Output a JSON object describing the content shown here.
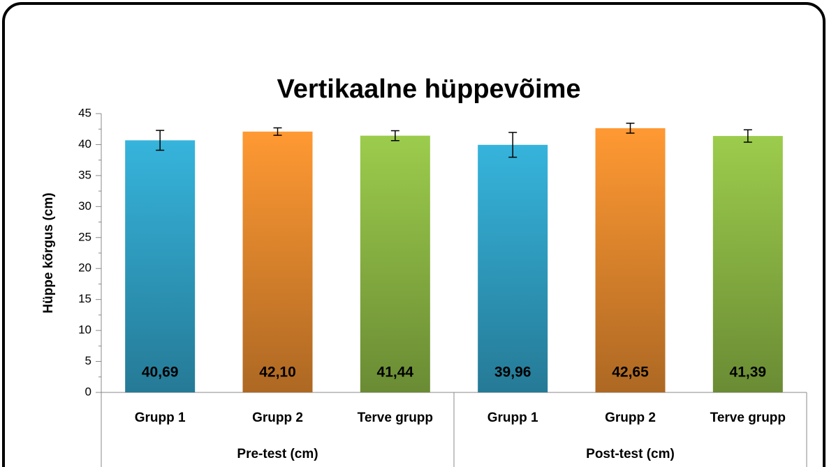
{
  "chart_data": {
    "type": "bar",
    "title": "Vertikaalne hüppevõime",
    "y_label": "Hüppe kõrgus (cm)",
    "categories": [
      "Grupp 1",
      "Grupp 2",
      "Terve grupp",
      "Grupp 1",
      "Grupp 2",
      "Terve grupp"
    ],
    "groups": [
      "Pre-test (cm)",
      "Post-test (cm)"
    ],
    "values": [
      40.69,
      42.1,
      41.44,
      39.96,
      42.65,
      41.39
    ],
    "value_labels": [
      "40,69",
      "42,10",
      "41,44",
      "39,96",
      "42,65",
      "41,39"
    ],
    "errors": [
      1.6,
      0.6,
      0.8,
      2.0,
      0.8,
      1.0
    ],
    "colors": [
      "#36b4dc",
      "#ff9933",
      "#9ccc4c",
      "#36b4dc",
      "#ff9933",
      "#9ccc4c"
    ],
    "ylim": [
      0,
      45
    ],
    "yticks": [
      0,
      5,
      10,
      15,
      20,
      25,
      30,
      35,
      40,
      45
    ]
  }
}
